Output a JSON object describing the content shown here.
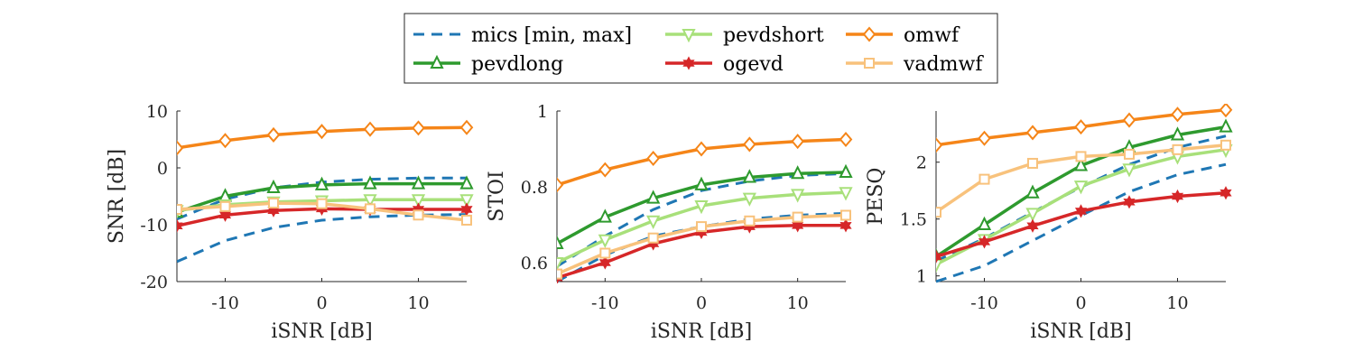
{
  "chart_data": {
    "type": "line",
    "legend": {
      "position": "top-center",
      "entries": [
        "mics [min, max]",
        "pevdlong",
        "pevdshort",
        "ogevd",
        "omwf",
        "vadmwf"
      ]
    },
    "colors": {
      "mics": "#1f77b4",
      "pevdlong": "#2e9a2e",
      "pevdshort": "#a8e07a",
      "ogevd": "#d62728",
      "omwf": "#f58518",
      "vadmwf": "#f8c27c"
    },
    "panels": [
      {
        "xlabel": "iSNR [dB]",
        "ylabel": "SNR [dB]",
        "xlim": [
          -15,
          15
        ],
        "ylim": [
          -20,
          10
        ],
        "xticks": [
          -10,
          0,
          10
        ],
        "yticks": [
          -20,
          -10,
          0,
          10
        ],
        "x": [
          -15,
          -10,
          -5,
          0,
          5,
          10,
          15
        ],
        "mics_curves": [
          {
            "x": [
              -15,
              -10,
              -5,
              0,
              5,
              10,
              15
            ],
            "y": [
              -9,
              -5.5,
              -3.5,
              -2.5,
              -2,
              -1.8,
              -1.8
            ]
          },
          {
            "x": [
              -15,
              -10,
              -5,
              0,
              5,
              10,
              15
            ],
            "y": [
              -16.5,
              -12.8,
              -10.5,
              -9.2,
              -8.6,
              -8.3,
              -8.2
            ]
          }
        ],
        "series": [
          {
            "name": "pevdlong",
            "values": [
              -7.8,
              -5,
              -3.5,
              -3,
              -2.8,
              -2.8,
              -2.8
            ]
          },
          {
            "name": "pevdshort",
            "values": [
              -7.5,
              -6.5,
              -6,
              -5.8,
              -5.6,
              -5.6,
              -5.6
            ]
          },
          {
            "name": "ogevd",
            "values": [
              -10.2,
              -8.3,
              -7.5,
              -7.2,
              -7.3,
              -7.3,
              -7.3
            ]
          },
          {
            "name": "omwf",
            "values": [
              3.5,
              4.8,
              5.8,
              6.4,
              6.8,
              7,
              7.1
            ]
          },
          {
            "name": "vadmwf",
            "values": [
              -7.3,
              -6.8,
              -6.2,
              -6.3,
              -7.2,
              -8.3,
              -9.2
            ]
          }
        ]
      },
      {
        "xlabel": "iSNR [dB]",
        "ylabel": "STOI",
        "xlim": [
          -15,
          15
        ],
        "ylim": [
          0.55,
          1
        ],
        "xticks": [
          -10,
          0,
          10
        ],
        "yticks": [
          0.6,
          0.8,
          1
        ],
        "x": [
          -15,
          -10,
          -5,
          0,
          5,
          10,
          15
        ],
        "mics_curves": [
          {
            "x": [
              -15,
              -10,
              -5,
              0,
              5,
              10,
              15
            ],
            "y": [
              0.59,
              0.67,
              0.74,
              0.79,
              0.815,
              0.83,
              0.835
            ]
          },
          {
            "x": [
              -15,
              -10,
              -5,
              0,
              5,
              10,
              15
            ],
            "y": [
              0.55,
              0.62,
              0.67,
              0.695,
              0.715,
              0.725,
              0.73
            ]
          }
        ],
        "series": [
          {
            "name": "pevdlong",
            "values": [
              0.65,
              0.72,
              0.77,
              0.805,
              0.825,
              0.835,
              0.838
            ]
          },
          {
            "name": "pevdshort",
            "values": [
              0.6,
              0.66,
              0.71,
              0.75,
              0.77,
              0.78,
              0.785
            ]
          },
          {
            "name": "ogevd",
            "values": [
              0.56,
              0.6,
              0.65,
              0.68,
              0.695,
              0.698,
              0.698
            ]
          },
          {
            "name": "omwf",
            "values": [
              0.805,
              0.845,
              0.875,
              0.9,
              0.912,
              0.92,
              0.925
            ]
          },
          {
            "name": "vadmwf",
            "values": [
              0.57,
              0.625,
              0.665,
              0.695,
              0.71,
              0.72,
              0.725
            ]
          }
        ]
      },
      {
        "xlabel": "iSNR [dB]",
        "ylabel": "PESQ",
        "xlim": [
          -15,
          15
        ],
        "ylim": [
          0.95,
          2.45
        ],
        "xticks": [
          -10,
          0,
          10
        ],
        "yticks": [
          1,
          1.5,
          2
        ],
        "x": [
          -15,
          -10,
          -5,
          0,
          5,
          10,
          15
        ],
        "mics_curves": [
          {
            "x": [
              -15,
              -10,
              -5,
              0,
              5,
              10,
              15
            ],
            "y": [
              1.13,
              1.33,
              1.56,
              1.78,
              1.98,
              2.13,
              2.23
            ]
          },
          {
            "x": [
              -15,
              -10,
              -5,
              0,
              5,
              10,
              15
            ],
            "y": [
              0.95,
              1.09,
              1.31,
              1.53,
              1.74,
              1.89,
              1.98
            ]
          }
        ],
        "series": [
          {
            "name": "pevdlong",
            "values": [
              1.17,
              1.45,
              1.73,
              1.97,
              2.13,
              2.24,
              2.31
            ]
          },
          {
            "name": "pevdshort",
            "values": [
              1.1,
              1.32,
              1.55,
              1.79,
              1.94,
              2.05,
              2.11
            ]
          },
          {
            "name": "ogevd",
            "values": [
              1.17,
              1.3,
              1.44,
              1.57,
              1.65,
              1.7,
              1.73
            ]
          },
          {
            "name": "omwf",
            "values": [
              2.15,
              2.21,
              2.26,
              2.31,
              2.37,
              2.42,
              2.46
            ]
          },
          {
            "name": "vadmwf",
            "values": [
              1.56,
              1.85,
              1.99,
              2.05,
              2.07,
              2.11,
              2.15
            ]
          }
        ]
      }
    ]
  }
}
